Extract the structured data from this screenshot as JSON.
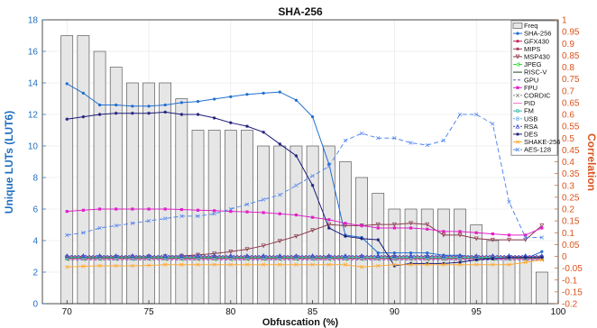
{
  "chart_data": {
    "type": "bar+line",
    "title": "SHA-256",
    "xlabel": "Obfuscation (%)",
    "ylabel_left": "Unique LUTs (LUT6)",
    "ylabel_right": "Correlation",
    "xlim": [
      68.5,
      100
    ],
    "ylim_left": [
      0,
      18
    ],
    "ylim_right": [
      -0.2,
      1.0
    ],
    "x_ticks": [
      70,
      75,
      80,
      85,
      90,
      95,
      100
    ],
    "y_left_ticks": [
      0,
      2,
      4,
      6,
      8,
      10,
      12,
      14,
      16,
      18
    ],
    "y_right_ticks": [
      -0.2,
      -0.15,
      -0.1,
      -0.05,
      0,
      0.05,
      0.1,
      0.15,
      0.2,
      0.25,
      0.3,
      0.35,
      0.4,
      0.45,
      0.5,
      0.55,
      0.6,
      0.65,
      0.7,
      0.75,
      0.8,
      0.85,
      0.9,
      0.95,
      1
    ],
    "y_right_tick_labels": [
      "-0.2",
      "-0.15",
      "-0.1",
      "-0.05",
      "0",
      "0.05",
      "0.1",
      "0.15",
      "0.2",
      "0.25",
      "0.3",
      "0.35",
      "0.4",
      "0.45",
      "0.5",
      "0.55",
      "0.6",
      "0.65",
      "0.7",
      "0.75",
      "0.8",
      "0.85",
      "0.9",
      "0.95",
      "1"
    ],
    "grid": true,
    "legend_position": "top-right",
    "bars": {
      "name": "Freq",
      "color": "#e6e6e6",
      "edge": "#444444",
      "x": [
        70,
        71,
        72,
        73,
        74,
        75,
        76,
        77,
        78,
        79,
        80,
        81,
        82,
        83,
        84,
        85,
        86,
        87,
        88,
        89,
        90,
        91,
        92,
        93,
        94,
        95,
        96,
        97,
        98,
        99
      ],
      "values": [
        17,
        17,
        16,
        15,
        14,
        14,
        14,
        13,
        11,
        11,
        11,
        11,
        10,
        10,
        10,
        10,
        10,
        9,
        8,
        7,
        6,
        6,
        6,
        6,
        6,
        5,
        4,
        3,
        3,
        2
      ]
    },
    "x": [
      70,
      71,
      72,
      73,
      74,
      75,
      76,
      77,
      78,
      79,
      80,
      81,
      82,
      83,
      84,
      85,
      86,
      87,
      88,
      89,
      90,
      91,
      92,
      93,
      94,
      95,
      96,
      97,
      98,
      99
    ],
    "series": [
      {
        "name": "SHA-256",
        "color": "#1f6fd1",
        "marker": "dot",
        "dash": "",
        "values": [
          0.73,
          0.69,
          0.64,
          0.64,
          0.635,
          0.635,
          0.64,
          0.65,
          0.655,
          0.665,
          0.675,
          0.685,
          0.69,
          0.695,
          0.66,
          0.59,
          0.39,
          0.09,
          0.08,
          0.015,
          0.015,
          0.015,
          0.015,
          0.005,
          0.005,
          -0.005,
          -0.005,
          -0.01,
          -0.01,
          0.02
        ]
      },
      {
        "name": "GFX430",
        "color": "#cc2255",
        "marker": "dot",
        "dash": "",
        "values": [
          0.0,
          0.0,
          0.0,
          0.0,
          0.0,
          0.0,
          0.0,
          0.0,
          0.0,
          0.0,
          0.0,
          0.0,
          0.0,
          0.0,
          0.0,
          0.0,
          0.0,
          0.0,
          0.0,
          0.0,
          0.0,
          0.0,
          0.0,
          0.0,
          0.0,
          0.0,
          0.0,
          0.0,
          0.0,
          0.0
        ]
      },
      {
        "name": "MIPS",
        "color": "#a0304f",
        "marker": "star",
        "dash": "",
        "values": [
          -0.005,
          -0.005,
          -0.005,
          -0.005,
          -0.005,
          -0.005,
          -0.005,
          -0.005,
          -0.005,
          -0.005,
          -0.005,
          -0.005,
          -0.005,
          -0.005,
          -0.005,
          -0.005,
          -0.005,
          -0.005,
          -0.01,
          -0.01,
          -0.01,
          -0.01,
          -0.01,
          -0.01,
          -0.01,
          -0.01,
          -0.01,
          -0.01,
          -0.01,
          -0.01
        ]
      },
      {
        "name": "MSP430",
        "color": "#8a3a4c",
        "marker": "tri-down",
        "dash": "",
        "values": [
          -0.005,
          -0.005,
          -0.003,
          -0.003,
          -0.002,
          -0.001,
          0.0,
          0.002,
          0.006,
          0.012,
          0.02,
          0.03,
          0.045,
          0.065,
          0.085,
          0.11,
          0.135,
          0.13,
          0.13,
          0.135,
          0.135,
          0.14,
          0.135,
          0.09,
          0.09,
          0.075,
          0.07,
          0.07,
          0.07,
          0.13
        ]
      },
      {
        "name": "JPEG",
        "color": "#33dd33",
        "marker": "tri-left",
        "dash": "4,2",
        "values": [
          -0.012,
          -0.012,
          -0.012,
          -0.012,
          -0.012,
          -0.012,
          -0.012,
          -0.012,
          -0.012,
          -0.012,
          -0.012,
          -0.012,
          -0.012,
          -0.012,
          -0.012,
          -0.012,
          -0.012,
          -0.012,
          -0.012,
          -0.012,
          -0.012,
          -0.012,
          -0.012,
          -0.012,
          -0.012,
          -0.012,
          -0.012,
          -0.012,
          -0.012,
          -0.012
        ]
      },
      {
        "name": "RISC-V",
        "color": "#224422",
        "marker": "none",
        "dash": "",
        "values": [
          -0.008,
          -0.008,
          -0.008,
          -0.008,
          -0.008,
          -0.008,
          -0.008,
          -0.008,
          -0.008,
          -0.008,
          -0.008,
          -0.008,
          -0.008,
          -0.008,
          -0.008,
          -0.008,
          -0.008,
          -0.008,
          -0.008,
          -0.008,
          -0.008,
          -0.008,
          -0.008,
          -0.008,
          -0.008,
          -0.008,
          -0.008,
          -0.008,
          -0.008,
          -0.008
        ]
      },
      {
        "name": "GPU",
        "color": "#6655cc",
        "marker": "none",
        "dash": "3,2",
        "values": [
          -0.015,
          -0.015,
          -0.015,
          -0.015,
          -0.015,
          -0.015,
          -0.015,
          -0.015,
          -0.015,
          -0.015,
          -0.015,
          -0.015,
          -0.015,
          -0.015,
          -0.015,
          -0.015,
          -0.015,
          -0.015,
          -0.015,
          -0.015,
          -0.015,
          -0.015,
          -0.015,
          -0.015,
          -0.015,
          -0.015,
          -0.015,
          -0.015,
          -0.015,
          -0.015
        ]
      },
      {
        "name": "FPU",
        "color": "#e020c8",
        "marker": "square",
        "dash": "",
        "values": [
          0.19,
          0.195,
          0.2,
          0.2,
          0.2,
          0.2,
          0.2,
          0.198,
          0.195,
          0.193,
          0.19,
          0.188,
          0.185,
          0.18,
          0.175,
          0.165,
          0.155,
          0.14,
          0.13,
          0.12,
          0.12,
          0.12,
          0.115,
          0.105,
          0.105,
          0.1,
          0.095,
          0.09,
          0.09,
          0.12
        ]
      },
      {
        "name": "CORDIC",
        "color": "#888888",
        "marker": "x",
        "dash": "2,2",
        "values": [
          -0.01,
          -0.01,
          -0.01,
          -0.01,
          -0.01,
          -0.01,
          -0.01,
          -0.01,
          -0.01,
          -0.01,
          -0.01,
          -0.01,
          -0.01,
          -0.01,
          -0.01,
          -0.01,
          -0.01,
          -0.01,
          -0.01,
          -0.01,
          -0.01,
          -0.01,
          -0.01,
          -0.01,
          -0.01,
          -0.01,
          -0.01,
          -0.01,
          -0.01,
          -0.01
        ]
      },
      {
        "name": "PID",
        "color": "#ff77cc",
        "marker": "none",
        "dash": "",
        "values": [
          -0.012,
          -0.012,
          -0.012,
          -0.012,
          -0.012,
          -0.012,
          -0.012,
          -0.012,
          -0.012,
          -0.012,
          -0.012,
          -0.012,
          -0.012,
          -0.012,
          -0.012,
          -0.012,
          -0.012,
          -0.012,
          -0.012,
          -0.012,
          -0.012,
          -0.012,
          -0.012,
          -0.012,
          -0.012,
          -0.012,
          -0.012,
          -0.012,
          -0.012,
          -0.012
        ]
      },
      {
        "name": "FM",
        "color": "#33bbaa",
        "marker": "circle",
        "dash": "",
        "values": [
          -0.005,
          -0.005,
          -0.005,
          -0.005,
          -0.005,
          -0.005,
          -0.005,
          -0.005,
          -0.005,
          -0.005,
          -0.005,
          -0.005,
          -0.005,
          -0.005,
          -0.005,
          -0.005,
          -0.005,
          -0.005,
          -0.005,
          -0.005,
          -0.005,
          -0.005,
          -0.005,
          -0.005,
          -0.005,
          -0.005,
          -0.005,
          -0.005,
          -0.005,
          -0.005
        ]
      },
      {
        "name": "USB",
        "color": "#66aaee",
        "marker": "circle",
        "dash": "2,2",
        "values": [
          0.0,
          0.0,
          0.0,
          0.0,
          0.0,
          0.0,
          0.0,
          0.0,
          0.0,
          0.0,
          0.0,
          0.0,
          0.0,
          0.0,
          0.0,
          0.0,
          0.0,
          0.0,
          0.0,
          0.0,
          0.0,
          0.0,
          0.0,
          0.0,
          0.0,
          0.0,
          0.0,
          0.0,
          0.0,
          0.0
        ]
      },
      {
        "name": "RSA",
        "color": "#3344cc",
        "marker": "triangle",
        "dash": "2,2",
        "values": [
          0.003,
          0.003,
          0.003,
          0.003,
          0.003,
          0.003,
          0.003,
          0.003,
          0.003,
          0.003,
          0.003,
          0.003,
          0.003,
          0.003,
          0.003,
          0.003,
          0.003,
          0.003,
          0.003,
          0.003,
          0.003,
          0.003,
          0.003,
          0.003,
          0.003,
          0.003,
          0.003,
          0.003,
          0.003,
          0.003
        ]
      },
      {
        "name": "DES",
        "color": "#1a1a7a",
        "marker": "star",
        "dash": "",
        "values": [
          0.58,
          0.59,
          0.6,
          0.605,
          0.605,
          0.605,
          0.61,
          0.6,
          0.6,
          0.585,
          0.565,
          0.55,
          0.525,
          0.475,
          0.425,
          0.3,
          0.12,
          0.085,
          0.075,
          0.07,
          -0.04,
          -0.03,
          -0.03,
          -0.03,
          -0.025,
          -0.015,
          -0.01,
          -0.005,
          -0.005,
          -0.005
        ]
      },
      {
        "name": "SHAKE-256",
        "color": "#ffaa33",
        "marker": "x",
        "dash": "",
        "values": [
          -0.045,
          -0.042,
          -0.04,
          -0.04,
          -0.04,
          -0.038,
          -0.035,
          -0.035,
          -0.035,
          -0.035,
          -0.035,
          -0.035,
          -0.035,
          -0.035,
          -0.035,
          -0.035,
          -0.035,
          -0.035,
          -0.045,
          -0.04,
          -0.035,
          -0.035,
          -0.035,
          -0.035,
          -0.035,
          -0.035,
          -0.035,
          -0.035,
          -0.025,
          -0.015
        ]
      },
      {
        "name": "AES-128",
        "color": "#5588ee",
        "marker": "x",
        "dash": "5,3",
        "values": [
          0.09,
          0.1,
          0.12,
          0.13,
          0.14,
          0.15,
          0.16,
          0.17,
          0.17,
          0.18,
          0.2,
          0.22,
          0.24,
          0.26,
          0.3,
          0.34,
          0.38,
          0.49,
          0.52,
          0.5,
          0.5,
          0.48,
          0.47,
          0.49,
          0.6,
          0.6,
          0.56,
          0.23,
          0.08,
          0.08
        ]
      }
    ]
  }
}
